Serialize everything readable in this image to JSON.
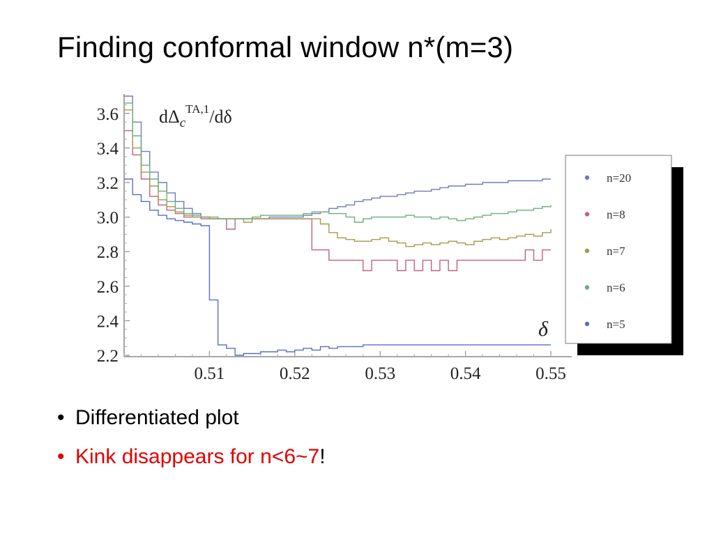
{
  "slide": {
    "title": "Finding conformal window n*(m=3)",
    "bullets": [
      {
        "text": "Differentiated plot",
        "suffix": "",
        "color": "#000000"
      },
      {
        "text": "Kink disappears for n<6~7",
        "suffix": "!",
        "color": "#e00000"
      }
    ]
  },
  "chart_data": {
    "type": "line",
    "title": "",
    "ylabel": "dΔ_c^{TA,1}/dδ",
    "ylabel_parts": {
      "main": "dΔ",
      "sub": "c",
      "sup": "TA,1",
      "tail": "/dδ"
    },
    "xlabel": "δ",
    "xlim": [
      0.5,
      0.55
    ],
    "ylim": [
      2.2,
      3.7
    ],
    "xticks": [
      0.51,
      0.52,
      0.53,
      0.54,
      0.55
    ],
    "xtick_labels": [
      "0.51",
      "0.52",
      "0.53",
      "0.54",
      "0.55"
    ],
    "yticks": [
      2.2,
      2.4,
      2.6,
      2.8,
      3.0,
      3.2,
      3.4,
      3.6
    ],
    "ytick_labels": [
      "2.2",
      "2.4",
      "2.6",
      "2.8",
      "3.0",
      "3.2",
      "3.4",
      "3.6"
    ],
    "legend_position": "right",
    "step": true,
    "series": [
      {
        "name": "n=20",
        "color": "#6b7bbd",
        "x": [
          0.5,
          0.501,
          0.502,
          0.503,
          0.504,
          0.505,
          0.506,
          0.507,
          0.508,
          0.509,
          0.51,
          0.511,
          0.512,
          0.513,
          0.514,
          0.515,
          0.516,
          0.517,
          0.518,
          0.519,
          0.52,
          0.521,
          0.522,
          0.523,
          0.524,
          0.525,
          0.526,
          0.527,
          0.528,
          0.529,
          0.53,
          0.531,
          0.532,
          0.533,
          0.534,
          0.535,
          0.536,
          0.537,
          0.538,
          0.539,
          0.54,
          0.541,
          0.542,
          0.543,
          0.544,
          0.545,
          0.546,
          0.547,
          0.548,
          0.549,
          0.55
        ],
        "y": [
          3.7,
          3.55,
          3.38,
          3.26,
          3.2,
          3.14,
          3.09,
          3.05,
          3.02,
          3.0,
          2.99,
          2.99,
          2.99,
          2.99,
          2.99,
          2.99,
          2.99,
          3.0,
          3.0,
          3.0,
          3.0,
          3.01,
          3.02,
          3.03,
          3.05,
          3.06,
          3.07,
          3.09,
          3.1,
          3.11,
          3.12,
          3.12,
          3.13,
          3.14,
          3.15,
          3.15,
          3.16,
          3.17,
          3.18,
          3.18,
          3.19,
          3.19,
          3.2,
          3.2,
          3.2,
          3.21,
          3.21,
          3.21,
          3.21,
          3.22,
          3.22
        ]
      },
      {
        "name": "n=8",
        "color": "#c06080",
        "x": [
          0.5,
          0.501,
          0.502,
          0.503,
          0.504,
          0.505,
          0.506,
          0.507,
          0.508,
          0.509,
          0.51,
          0.511,
          0.512,
          0.513,
          0.514,
          0.515,
          0.516,
          0.517,
          0.518,
          0.519,
          0.52,
          0.521,
          0.522,
          0.523,
          0.524,
          0.525,
          0.526,
          0.527,
          0.528,
          0.529,
          0.53,
          0.531,
          0.532,
          0.533,
          0.534,
          0.535,
          0.536,
          0.537,
          0.538,
          0.539,
          0.54,
          0.541,
          0.542,
          0.543,
          0.544,
          0.545,
          0.546,
          0.547,
          0.548,
          0.549,
          0.55
        ],
        "y": [
          3.5,
          3.36,
          3.22,
          3.12,
          3.07,
          3.04,
          3.02,
          3.0,
          3.0,
          2.99,
          2.99,
          2.99,
          2.93,
          2.99,
          2.99,
          2.99,
          2.99,
          2.99,
          2.99,
          2.99,
          2.99,
          2.99,
          2.81,
          2.81,
          2.75,
          2.75,
          2.75,
          2.75,
          2.69,
          2.75,
          2.75,
          2.75,
          2.69,
          2.75,
          2.69,
          2.75,
          2.69,
          2.75,
          2.69,
          2.75,
          2.75,
          2.75,
          2.75,
          2.75,
          2.75,
          2.75,
          2.75,
          2.81,
          2.75,
          2.81,
          2.81
        ]
      },
      {
        "name": "n=7",
        "color": "#a89848",
        "x": [
          0.5,
          0.501,
          0.502,
          0.503,
          0.504,
          0.505,
          0.506,
          0.507,
          0.508,
          0.509,
          0.51,
          0.511,
          0.512,
          0.513,
          0.514,
          0.515,
          0.516,
          0.517,
          0.518,
          0.519,
          0.52,
          0.521,
          0.522,
          0.523,
          0.524,
          0.525,
          0.526,
          0.527,
          0.528,
          0.529,
          0.53,
          0.531,
          0.532,
          0.533,
          0.534,
          0.535,
          0.536,
          0.537,
          0.538,
          0.539,
          0.54,
          0.541,
          0.542,
          0.543,
          0.544,
          0.545,
          0.546,
          0.547,
          0.548,
          0.549,
          0.55
        ],
        "y": [
          3.62,
          3.4,
          3.26,
          3.18,
          3.1,
          3.06,
          3.03,
          3.01,
          3.0,
          3.0,
          2.99,
          2.99,
          2.99,
          2.99,
          2.97,
          2.99,
          2.99,
          2.99,
          2.99,
          2.99,
          2.99,
          2.99,
          2.99,
          2.96,
          2.91,
          2.88,
          2.87,
          2.86,
          2.86,
          2.87,
          2.88,
          2.86,
          2.85,
          2.83,
          2.84,
          2.85,
          2.84,
          2.85,
          2.86,
          2.85,
          2.84,
          2.86,
          2.87,
          2.88,
          2.87,
          2.88,
          2.89,
          2.9,
          2.89,
          2.91,
          2.93
        ]
      },
      {
        "name": "n=6",
        "color": "#6cae78",
        "x": [
          0.5,
          0.501,
          0.502,
          0.503,
          0.504,
          0.505,
          0.506,
          0.507,
          0.508,
          0.509,
          0.51,
          0.511,
          0.512,
          0.513,
          0.514,
          0.515,
          0.516,
          0.517,
          0.518,
          0.519,
          0.52,
          0.521,
          0.522,
          0.523,
          0.524,
          0.525,
          0.526,
          0.527,
          0.528,
          0.529,
          0.53,
          0.531,
          0.532,
          0.533,
          0.534,
          0.535,
          0.536,
          0.537,
          0.538,
          0.539,
          0.54,
          0.541,
          0.542,
          0.543,
          0.544,
          0.545,
          0.546,
          0.547,
          0.548,
          0.549,
          0.55
        ],
        "y": [
          3.66,
          3.47,
          3.3,
          3.22,
          3.15,
          3.09,
          3.05,
          3.02,
          3.01,
          3.0,
          3.0,
          2.99,
          2.99,
          2.99,
          2.99,
          3.0,
          3.01,
          3.01,
          3.01,
          3.01,
          3.01,
          3.02,
          3.03,
          3.03,
          3.02,
          3.02,
          3.0,
          2.97,
          2.99,
          3.0,
          3.0,
          3.0,
          3.0,
          3.01,
          3.0,
          3.0,
          2.99,
          3.0,
          2.99,
          2.98,
          2.99,
          3.0,
          3.01,
          3.02,
          3.02,
          3.03,
          3.04,
          3.04,
          3.05,
          3.06,
          3.07
        ]
      },
      {
        "name": "n=5",
        "color": "#5a6cc8",
        "x": [
          0.5,
          0.501,
          0.502,
          0.503,
          0.504,
          0.505,
          0.506,
          0.507,
          0.508,
          0.509,
          0.51,
          0.511,
          0.512,
          0.513,
          0.514,
          0.515,
          0.516,
          0.517,
          0.518,
          0.519,
          0.52,
          0.521,
          0.522,
          0.523,
          0.524,
          0.525,
          0.526,
          0.527,
          0.528,
          0.529,
          0.53,
          0.531,
          0.532,
          0.533,
          0.534,
          0.535,
          0.536,
          0.537,
          0.538,
          0.539,
          0.54,
          0.541,
          0.542,
          0.543,
          0.544,
          0.545,
          0.546,
          0.547,
          0.548,
          0.549,
          0.55
        ],
        "y": [
          3.22,
          3.13,
          3.09,
          3.04,
          3.01,
          2.99,
          2.98,
          2.97,
          2.96,
          2.95,
          2.52,
          2.26,
          2.24,
          2.2,
          2.21,
          2.21,
          2.22,
          2.22,
          2.23,
          2.22,
          2.23,
          2.24,
          2.23,
          2.25,
          2.24,
          2.25,
          2.25,
          2.25,
          2.26,
          2.26,
          2.26,
          2.26,
          2.26,
          2.26,
          2.26,
          2.26,
          2.26,
          2.26,
          2.26,
          2.26,
          2.26,
          2.26,
          2.26,
          2.26,
          2.26,
          2.26,
          2.26,
          2.26,
          2.26,
          2.26,
          2.26
        ]
      }
    ]
  }
}
